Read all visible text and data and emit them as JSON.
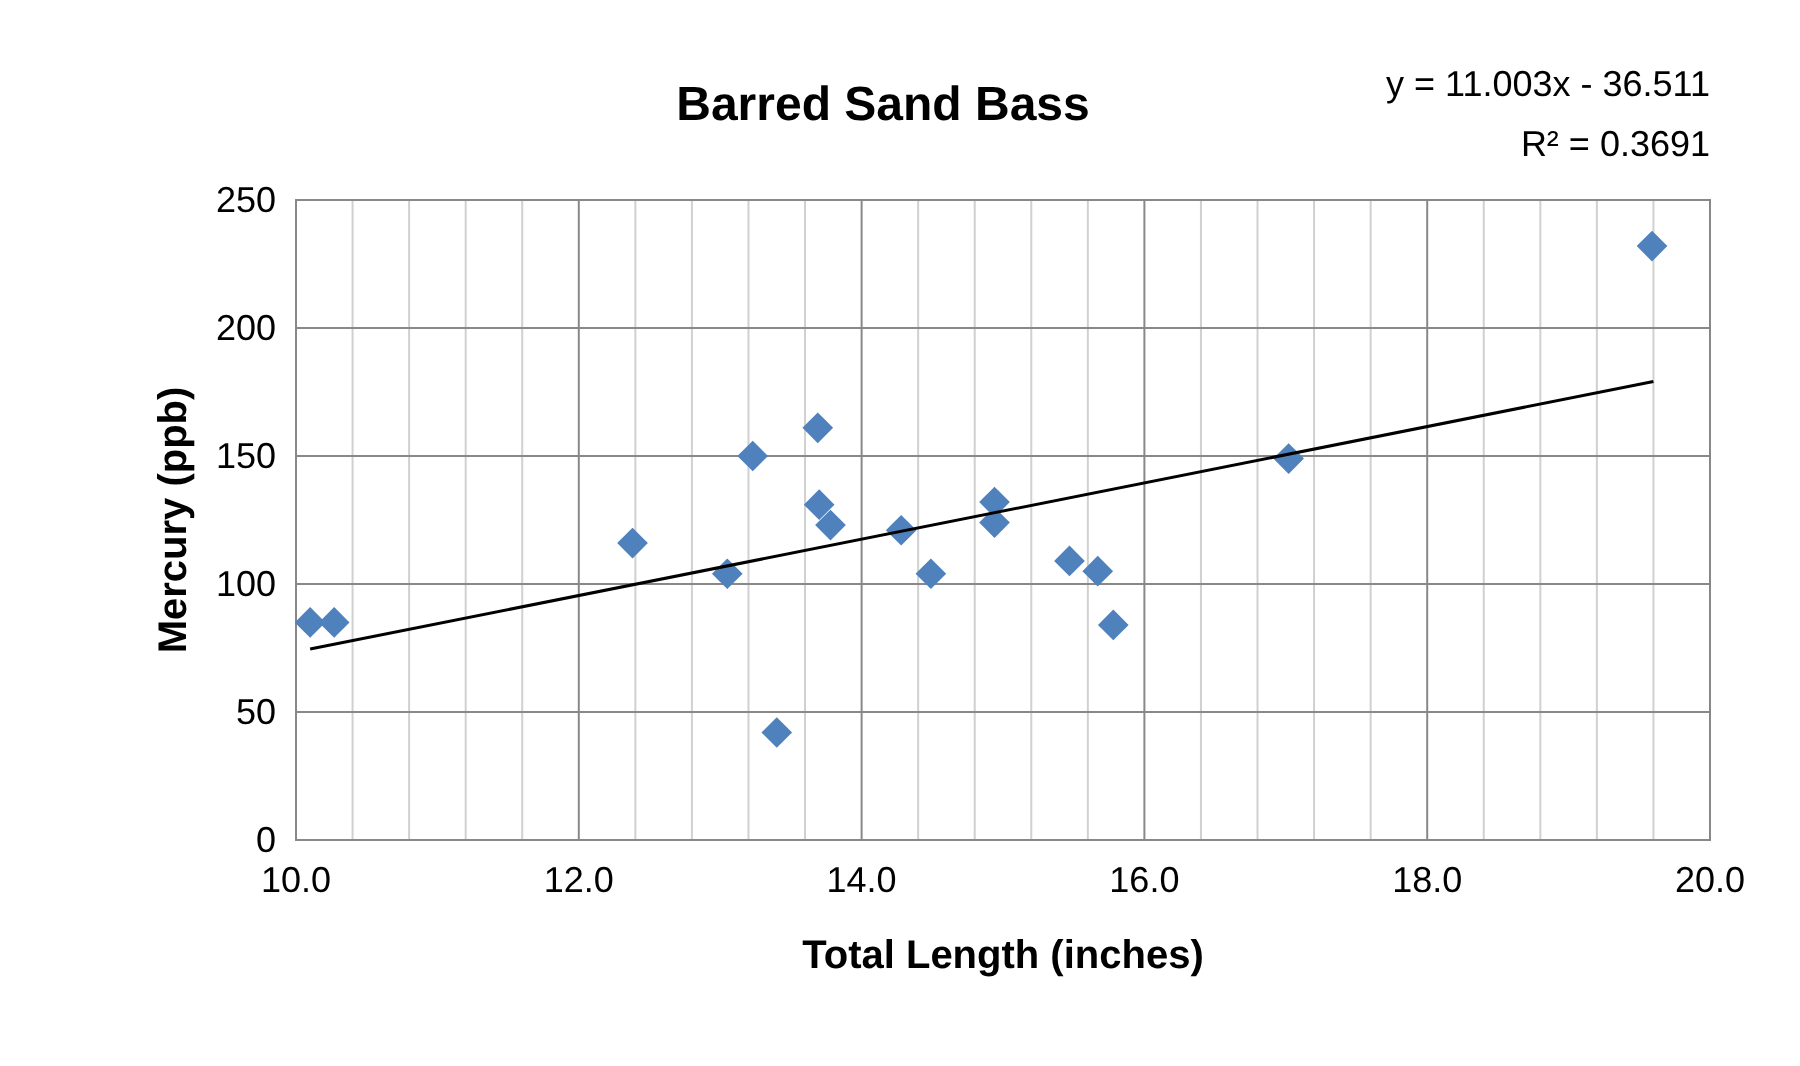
{
  "chart_data": {
    "type": "scatter",
    "title": "Barred Sand Bass",
    "xlabel": "Total Length (inches)",
    "ylabel": "Mercury (ppb)",
    "annotations": [
      "y = 11.003x - 36.511",
      "R² = 0.3691"
    ],
    "xlim": [
      10,
      20
    ],
    "ylim": [
      0,
      250
    ],
    "xticks": [
      {
        "value": 10,
        "label": "10.0"
      },
      {
        "value": 10.4,
        "label": null
      },
      {
        "value": 10.8,
        "label": null
      },
      {
        "value": 11.2,
        "label": null
      },
      {
        "value": 11.6,
        "label": null
      },
      {
        "value": 12,
        "label": "12.0"
      },
      {
        "value": 12.4,
        "label": null
      },
      {
        "value": 12.8,
        "label": null
      },
      {
        "value": 13.2,
        "label": null
      },
      {
        "value": 13.6,
        "label": null
      },
      {
        "value": 14,
        "label": "14.0"
      },
      {
        "value": 14.4,
        "label": null
      },
      {
        "value": 14.8,
        "label": null
      },
      {
        "value": 15.2,
        "label": null
      },
      {
        "value": 15.6,
        "label": null
      },
      {
        "value": 16,
        "label": "16.0"
      },
      {
        "value": 16.4,
        "label": null
      },
      {
        "value": 16.8,
        "label": null
      },
      {
        "value": 17.2,
        "label": null
      },
      {
        "value": 17.6,
        "label": null
      },
      {
        "value": 18,
        "label": "18.0"
      },
      {
        "value": 18.4,
        "label": null
      },
      {
        "value": 18.8,
        "label": null
      },
      {
        "value": 19.2,
        "label": null
      },
      {
        "value": 19.6,
        "label": null
      },
      {
        "value": 20,
        "label": "20.0"
      }
    ],
    "yticks": [
      0,
      50,
      100,
      150,
      200,
      250
    ],
    "grid": true,
    "series": [
      {
        "marker": "diamond",
        "color": "#4f81bd",
        "x": [
          10.1,
          10.27,
          12.38,
          13.05,
          13.23,
          13.4,
          13.69,
          13.7,
          13.78,
          14.28,
          14.49,
          14.94,
          14.94,
          15.47,
          15.67,
          15.78,
          17.02,
          19.59
        ],
        "values": [
          85,
          85,
          116,
          104,
          150,
          42,
          161,
          131,
          123,
          121,
          104,
          132,
          124,
          109,
          105,
          84,
          149,
          232
        ]
      },
      {
        "type": "line",
        "marker": "none",
        "color": "#000000",
        "x": [
          10.1,
          19.6
        ],
        "values": [
          74.6,
          179.1
        ]
      }
    ]
  }
}
